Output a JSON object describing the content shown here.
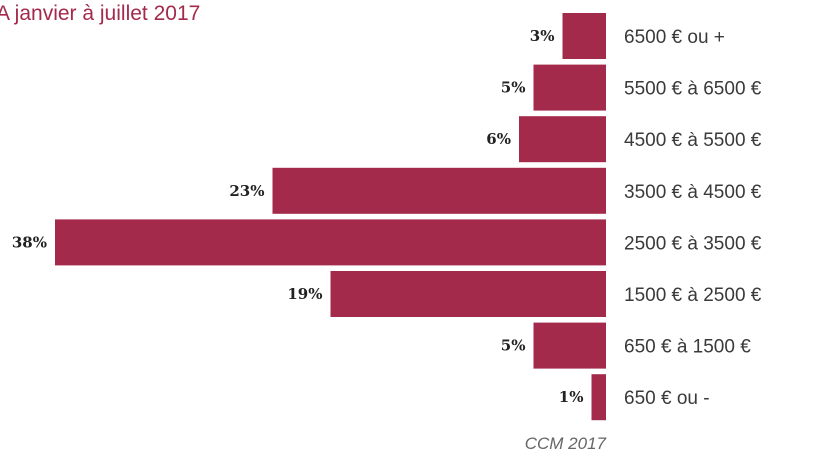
{
  "title": "A janvier à juillet 2017",
  "source": "CCM 2017",
  "colors": {
    "bar": "#a42a4b",
    "title": "#a42a4b",
    "value_label": "#222222",
    "category_label": "#3a3a3a",
    "source": "#666666"
  },
  "chart_data": {
    "type": "bar",
    "orientation": "horizontal",
    "title": "A janvier à juillet 2017",
    "xlabel": "",
    "ylabel": "",
    "unit": "%",
    "categories": [
      "6500 € ou +",
      "5500 € à 6500 €",
      "4500 € à 5500 €",
      "3500 € à 4500 €",
      "2500 € à 3500 €",
      "1500 € à 2500 €",
      "650 € à 1500 €",
      "650 € ou -"
    ],
    "values": [
      3,
      5,
      6,
      23,
      38,
      19,
      5,
      1
    ],
    "value_labels": [
      "3%",
      "5%",
      "6%",
      "23%",
      "38%",
      "19%",
      "5%",
      "1%"
    ],
    "grid": false,
    "legend": "none",
    "bar_direction": "grows leftward from category labels",
    "source": "CCM 2017"
  }
}
